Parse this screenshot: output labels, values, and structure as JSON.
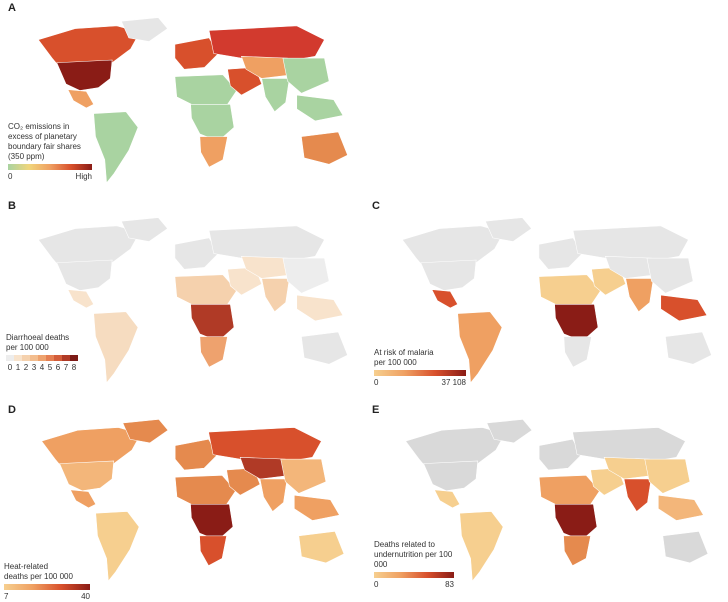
{
  "colors": {
    "nodata": "#e6e6e6",
    "green": "#a9d3a1",
    "low": "#f6dcc0",
    "mid": "#efa062",
    "high": "#d8502c",
    "darkest": "#8a1c16"
  },
  "panels": [
    {
      "letter": "A",
      "legend_title": "CO₂ emissions in excess of planetary boundary fair shares (350 ppm)",
      "ramp": [
        "#a9d3a1",
        "#f0d67c",
        "#efa062",
        "#d8502c",
        "#8a1c16"
      ],
      "min_label": "0",
      "max_label": "High"
    },
    {
      "letter": "B",
      "legend_title": "Diarrhoeal deaths per 100 000",
      "discrete_ramp": [
        "#ededed",
        "#f8e3cc",
        "#f5d1ad",
        "#f3bd8e",
        "#eea26e",
        "#e57f52",
        "#d35d3a",
        "#b03a26",
        "#7c1a16"
      ],
      "discrete_labels": [
        "0",
        "1",
        "2",
        "3",
        "4",
        "5",
        "6",
        "7",
        "8"
      ]
    },
    {
      "letter": "C",
      "legend_title": "At risk of malaria per 100 000",
      "ramp": [
        "#f6cf8f",
        "#efa062",
        "#d8502c",
        "#8a1c16"
      ],
      "min_label": "0",
      "max_label": "37 108"
    },
    {
      "letter": "D",
      "legend_title": "Heat-related deaths per 100 000",
      "ramp": [
        "#f6cf8f",
        "#efa062",
        "#d8502c",
        "#8a1c16"
      ],
      "min_label": "7",
      "max_label": "40"
    },
    {
      "letter": "E",
      "legend_title": "Deaths related to undernutrition per 100 000",
      "ramp": [
        "#f6cf8f",
        "#efa062",
        "#d8502c",
        "#8a1c16"
      ],
      "min_label": "0",
      "max_label": "83"
    }
  ]
}
